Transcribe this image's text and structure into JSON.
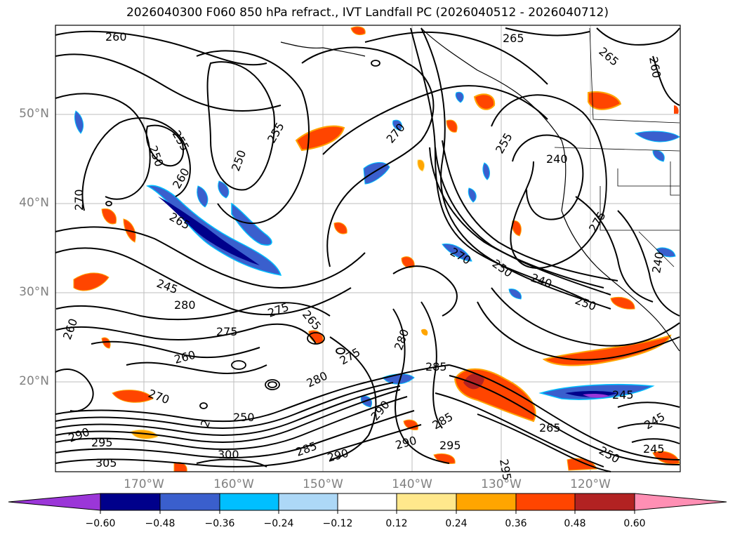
{
  "title": "2026040300 F060 850 hPa refract., IVT Landfall PC (2026040512 - 2026040712)",
  "map": {
    "lat_ticks": [
      "50°N",
      "40°N",
      "30°N",
      "20°N"
    ],
    "lon_ticks": [
      "170°W",
      "160°W",
      "150°W",
      "140°W",
      "130°W",
      "120°W"
    ],
    "contour_labels": [
      "260",
      "265",
      "265",
      "260",
      "255",
      "250",
      "255",
      "260",
      "250",
      "270",
      "270",
      "265",
      "270",
      "255",
      "250",
      "240",
      "275",
      "250",
      "240",
      "240",
      "245",
      "280",
      "275",
      "265",
      "275",
      "260",
      "275",
      "260",
      "270",
      "280",
      "285",
      "290",
      "280",
      "250",
      "285",
      "290",
      "295",
      "295",
      "305",
      "300",
      "285",
      "290",
      "290",
      "295",
      "265",
      "250",
      "245",
      "245",
      "245",
      "2"
    ]
  },
  "colorbar": {
    "ticks": [
      "−0.60",
      "−0.48",
      "−0.36",
      "−0.24",
      "−0.12",
      "0.12",
      "0.24",
      "0.36",
      "0.48",
      "0.60"
    ],
    "colors": [
      "#9b36d8",
      "#00008b",
      "#3a5fcd",
      "#00bfff",
      "#add8f7",
      "#ffffff",
      "#ffe88c",
      "#ffa500",
      "#ff4500",
      "#b22222",
      "#ff8fb4"
    ]
  }
}
